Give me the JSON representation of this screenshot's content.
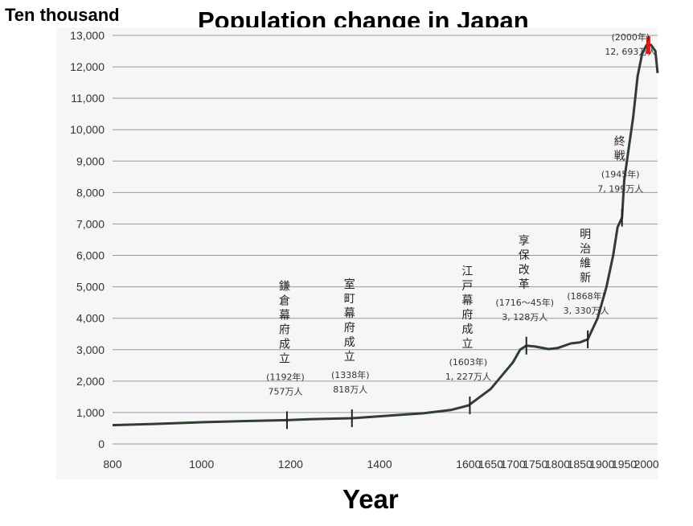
{
  "chart_data": {
    "type": "line",
    "title": "Population change in Japan",
    "ylabel": "Ten thousand",
    "xlabel": "Year",
    "xlim": [
      800,
      2025
    ],
    "ylim": [
      0,
      13000
    ],
    "x_ticks": [
      800,
      1000,
      1200,
      1400,
      1600,
      1650,
      1700,
      1750,
      1800,
      1850,
      1900,
      1950,
      2000
    ],
    "x_tick_labels": [
      "800",
      "1000",
      "1200",
      "1400",
      "1600",
      "1650",
      "1700",
      "1750",
      "1800",
      "1850",
      "1900",
      "1950",
      "2000"
    ],
    "y_ticks": [
      0,
      1000,
      2000,
      3000,
      4000,
      5000,
      6000,
      7000,
      8000,
      9000,
      10000,
      11000,
      12000,
      13000
    ],
    "y_tick_labels": [
      "0",
      "1,000",
      "2,000",
      "3,000",
      "4,000",
      "5,000",
      "6,000",
      "7,000",
      "8,000",
      "9,000",
      "10,000",
      "11,000",
      "12,000",
      "13,000"
    ],
    "grid": true,
    "series": [
      {
        "color": "#2f3e2f",
        "x": [
          800,
          900,
          1000,
          1100,
          1192,
          1250,
          1338,
          1400,
          1500,
          1560,
          1600,
          1650,
          1700,
          1716,
          1730,
          1750,
          1780,
          1800,
          1830,
          1850,
          1868,
          1890,
          1910,
          1925,
          1935,
          1945,
          1950,
          1960,
          1970,
          1980,
          1990,
          2000,
          2005,
          2010,
          2020,
          2025
        ],
        "y": [
          600,
          640,
          690,
          730,
          757,
          790,
          818,
          880,
          980,
          1080,
          1227,
          1750,
          2600,
          3000,
          3128,
          3100,
          3020,
          3050,
          3200,
          3230,
          3330,
          4000,
          5000,
          6000,
          6900,
          7199,
          8400,
          9400,
          10400,
          11700,
          12400,
          12693,
          12700,
          12700,
          12500,
          11800
        ]
      }
    ],
    "events": [
      {
        "year": 1192,
        "value": 757,
        "label": [
          "鎌",
          "倉",
          "幕",
          "府",
          "成",
          "立"
        ],
        "note": [
          "(1192年)",
          "757万人"
        ]
      },
      {
        "year": 1338,
        "value": 818,
        "label": [
          "室",
          "町",
          "幕",
          "府",
          "成",
          "立"
        ],
        "note": [
          "(1338年)",
          "818万人"
        ]
      },
      {
        "year": 1603,
        "value": 1227,
        "label": [
          "江",
          "戸",
          "幕",
          "府",
          "成",
          "立"
        ],
        "note": [
          "(1603年)",
          "1, 227万人"
        ]
      },
      {
        "year": 1730,
        "value": 3128,
        "label": [
          "享",
          "保",
          "改",
          "革"
        ],
        "note": [
          "(1716～45年)",
          "3, 128万人"
        ]
      },
      {
        "year": 1868,
        "value": 3330,
        "label": [
          "明",
          "治",
          "維",
          "新"
        ],
        "note": [
          "(1868年)",
          "3, 330万人"
        ]
      },
      {
        "year": 1945,
        "value": 7199,
        "label": [
          "終",
          "戦"
        ],
        "note": [
          "(1945年)",
          "7, 199万人"
        ]
      },
      {
        "year": 2004,
        "value": 12693,
        "label": [],
        "note": [
          "(2000年)",
          "12, 693万人"
        ]
      }
    ]
  }
}
